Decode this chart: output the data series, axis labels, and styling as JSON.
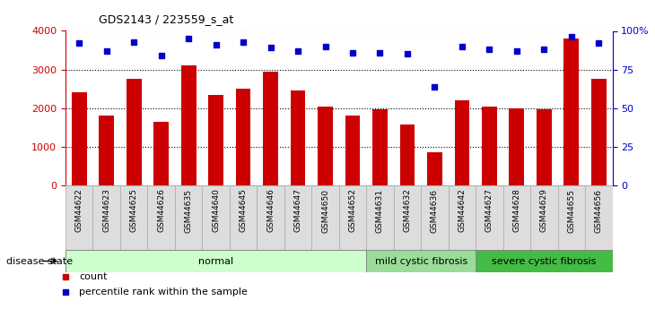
{
  "title": "GDS2143 / 223559_s_at",
  "categories": [
    "GSM44622",
    "GSM44623",
    "GSM44625",
    "GSM44626",
    "GSM44635",
    "GSM44640",
    "GSM44645",
    "GSM44646",
    "GSM44647",
    "GSM44650",
    "GSM44652",
    "GSM44631",
    "GSM44632",
    "GSM44636",
    "GSM44642",
    "GSM44627",
    "GSM44628",
    "GSM44629",
    "GSM44655",
    "GSM44656"
  ],
  "counts": [
    2400,
    1800,
    2750,
    1650,
    3100,
    2350,
    2500,
    2950,
    2450,
    2050,
    1800,
    1980,
    1570,
    850,
    2200,
    2050,
    2000,
    1980,
    3800,
    2750
  ],
  "percentiles": [
    92,
    87,
    93,
    84,
    95,
    91,
    93,
    89,
    87,
    90,
    86,
    86,
    85,
    64,
    90,
    88,
    87,
    88,
    96,
    92
  ],
  "bar_color": "#cc0000",
  "dot_color": "#0000cc",
  "group_labels": [
    "normal",
    "mild cystic fibrosis",
    "severe cystic fibrosis"
  ],
  "group_colors": [
    "#ccffcc",
    "#99dd99",
    "#44bb44"
  ],
  "group_sizes": [
    11,
    4,
    5
  ],
  "ylim_left": [
    0,
    4000
  ],
  "ylim_right": [
    0,
    100
  ],
  "yticks_left": [
    0,
    1000,
    2000,
    3000,
    4000
  ],
  "ytick_labels_left": [
    "0",
    "1000",
    "2000",
    "3000",
    "4000"
  ],
  "yticks_right": [
    0,
    25,
    50,
    75,
    100
  ],
  "ytick_labels_right": [
    "0",
    "25",
    "50",
    "75",
    "100%"
  ],
  "legend_count_label": "count",
  "legend_percentile_label": "percentile rank within the sample",
  "disease_state_label": "disease state",
  "bg_color": "#ffffff",
  "tick_bg_color": "#dddddd"
}
